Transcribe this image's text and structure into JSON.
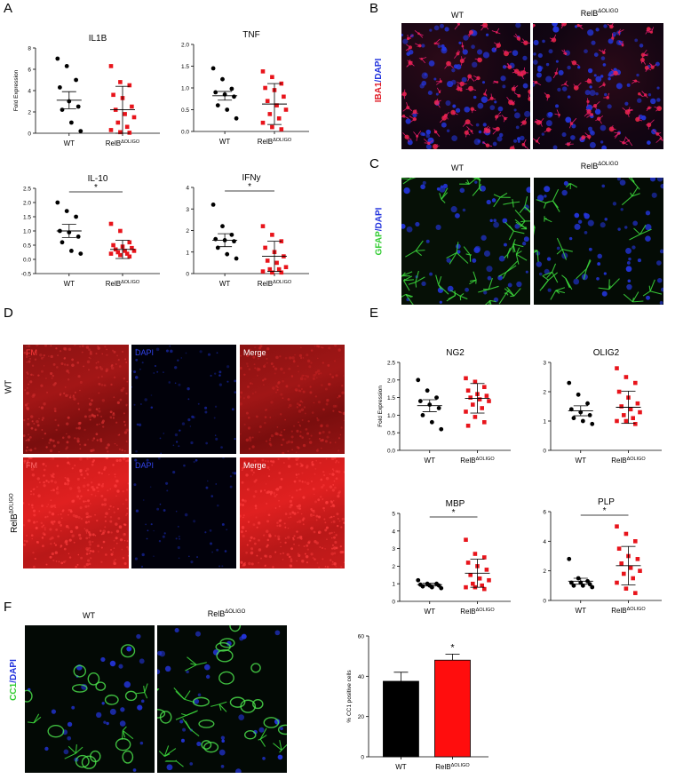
{
  "panels": {
    "A": "A",
    "B": "B",
    "C": "C",
    "D": "D",
    "E": "E",
    "F": "F"
  },
  "colors": {
    "wt": "#000000",
    "relb": "#e8141b",
    "red_stain": "#e0202a",
    "green_stain": "#33cc33",
    "blue_stain": "#2233dd"
  },
  "micro": {
    "wt": "WT",
    "relb_base": "RelB",
    "relb_sup": "ΔOLIGO",
    "B_side_a": "IBA1",
    "B_side_b": "/DAPI",
    "C_side_a": "GFAP",
    "C_side_b": "/DAPI",
    "F_side_a": "CC1",
    "F_side_b": "/DAPI",
    "D_fm": "FM",
    "D_dapi": "DAPI",
    "D_merge": "Merge",
    "D_row_wt": "WT"
  },
  "chart_data": [
    {
      "id": "IL1B",
      "type": "scatter",
      "title": "IL1B",
      "ylabel": "Fold Expression",
      "ylim": [
        0,
        8
      ],
      "yticks": [
        "0",
        "2",
        "4",
        "6",
        "8"
      ],
      "categories": [
        "WT",
        "RelB"
      ],
      "wt": [
        7.0,
        6.3,
        5.0,
        4.3,
        3.0,
        2.5,
        2.2,
        1.0,
        0.2
      ],
      "relb": [
        6.3,
        4.8,
        4.5,
        3.6,
        3.3,
        2.5,
        2.2,
        1.8,
        1.5,
        1.0,
        0.6,
        0.3,
        0.1,
        0.05
      ],
      "wt_mean": 3.1,
      "wt_err": 0.8,
      "relb_mean": 2.2,
      "relb_err": 2.2,
      "sig": ""
    },
    {
      "id": "TNF",
      "type": "scatter",
      "title": "TNF",
      "ylabel": "",
      "ylim": [
        0,
        2.0
      ],
      "yticks": [
        "0.0",
        "0.5",
        "1.0",
        "1.5",
        "2.0"
      ],
      "categories": [
        "WT",
        "RelB"
      ],
      "wt": [
        1.45,
        1.2,
        0.98,
        0.9,
        0.85,
        0.8,
        0.6,
        0.5,
        0.3
      ],
      "relb": [
        1.38,
        1.25,
        1.1,
        1.0,
        0.95,
        0.8,
        0.7,
        0.6,
        0.5,
        0.4,
        0.3,
        0.2,
        0.1,
        0.05
      ],
      "wt_mean": 0.82,
      "wt_err": 0.1,
      "relb_mean": 0.63,
      "relb_err": 0.47,
      "sig": ""
    },
    {
      "id": "IL-10",
      "type": "scatter",
      "title": "IL-10",
      "ylabel": "",
      "ylim": [
        -0.5,
        2.5
      ],
      "yticks": [
        "-0.5",
        "0.0",
        "0.5",
        "1.0",
        "1.5",
        "2.0",
        "2.5"
      ],
      "categories": [
        "WT",
        "RelB"
      ],
      "wt": [
        2.0,
        1.7,
        1.5,
        1.0,
        0.95,
        0.8,
        0.6,
        0.3,
        0.2
      ],
      "relb": [
        1.25,
        1.0,
        0.6,
        0.5,
        0.45,
        0.4,
        0.35,
        0.3,
        0.3,
        0.25,
        0.2,
        0.2,
        0.15,
        0.1
      ],
      "wt_mean": 1.0,
      "wt_err": 0.23,
      "relb_mean": 0.35,
      "relb_err": 0.32,
      "sig": "*"
    },
    {
      "id": "IFNy",
      "type": "scatter",
      "title": "IFNy",
      "ylabel": "",
      "ylim": [
        0,
        4
      ],
      "yticks": [
        "0",
        "1",
        "2",
        "3",
        "4"
      ],
      "categories": [
        "WT",
        "RelB"
      ],
      "wt": [
        3.2,
        2.2,
        1.8,
        1.6,
        1.55,
        1.5,
        1.2,
        0.9,
        0.7
      ],
      "relb": [
        2.2,
        1.8,
        1.5,
        1.2,
        1.0,
        0.8,
        0.6,
        0.5,
        0.3,
        0.2,
        0.2,
        0.1,
        0.05,
        0.05
      ],
      "wt_mean": 1.55,
      "wt_err": 0.3,
      "relb_mean": 0.8,
      "relb_err": 0.7,
      "sig": "*"
    },
    {
      "id": "NG2",
      "type": "scatter",
      "title": "NG2",
      "ylabel": "Fold Expression",
      "ylim": [
        0,
        2.5
      ],
      "yticks": [
        "0.0",
        "0.5",
        "1.0",
        "1.5",
        "2.0",
        "2.5"
      ],
      "categories": [
        "WT",
        "RelB"
      ],
      "wt": [
        2.0,
        1.7,
        1.5,
        1.4,
        1.3,
        1.2,
        1.0,
        0.8,
        0.6
      ],
      "relb": [
        2.05,
        1.95,
        1.8,
        1.7,
        1.6,
        1.55,
        1.5,
        1.45,
        1.4,
        1.3,
        1.2,
        1.1,
        0.95,
        0.8,
        0.7
      ],
      "wt_mean": 1.27,
      "wt_err": 0.17,
      "relb_mean": 1.48,
      "relb_err": 0.42,
      "sig": ""
    },
    {
      "id": "OLIG2",
      "type": "scatter",
      "title": "OLIG2",
      "ylabel": "",
      "ylim": [
        0,
        3
      ],
      "yticks": [
        "0",
        "1",
        "2",
        "3"
      ],
      "categories": [
        "WT",
        "RelB"
      ],
      "wt": [
        2.3,
        1.9,
        1.6,
        1.4,
        1.3,
        1.2,
        1.1,
        1.0,
        0.9
      ],
      "relb": [
        2.8,
        2.5,
        2.3,
        2.0,
        1.8,
        1.6,
        1.5,
        1.4,
        1.3,
        1.2,
        1.1,
        1.0,
        1.0,
        0.9
      ],
      "wt_mean": 1.35,
      "wt_err": 0.17,
      "relb_mean": 1.47,
      "relb_err": 0.55,
      "sig": ""
    },
    {
      "id": "MBP",
      "type": "scatter",
      "title": "MBP",
      "ylabel": "",
      "ylim": [
        0,
        5
      ],
      "yticks": [
        "0",
        "1",
        "2",
        "3",
        "4",
        "5"
      ],
      "categories": [
        "WT",
        "RelB"
      ],
      "wt": [
        1.2,
        1.0,
        1.0,
        0.95,
        0.9,
        0.9,
        0.85,
        0.8,
        0.75
      ],
      "relb": [
        3.5,
        2.7,
        2.5,
        2.2,
        2.0,
        1.8,
        1.5,
        1.3,
        1.2,
        1.0,
        0.9,
        0.8,
        0.8,
        0.7
      ],
      "wt_mean": 0.95,
      "wt_err": 0.08,
      "relb_mean": 1.6,
      "relb_err": 0.8,
      "sig": "*"
    },
    {
      "id": "PLP",
      "type": "scatter",
      "title": "PLP",
      "ylabel": "",
      "ylim": [
        0,
        6
      ],
      "yticks": [
        "0",
        "2",
        "4",
        "6"
      ],
      "categories": [
        "WT",
        "RelB"
      ],
      "wt": [
        2.8,
        1.5,
        1.3,
        1.2,
        1.2,
        1.1,
        1.0,
        1.0,
        0.9
      ],
      "relb": [
        5.0,
        4.5,
        4.0,
        3.5,
        3.0,
        2.8,
        2.5,
        2.2,
        2.0,
        1.8,
        1.5,
        1.2,
        0.8,
        0.5
      ],
      "wt_mean": 1.3,
      "wt_err": 0.2,
      "relb_mean": 2.35,
      "relb_err": 1.3,
      "sig": "*"
    },
    {
      "id": "CC1",
      "type": "bar",
      "title": "",
      "ylabel": "% CC1 positive cells",
      "ylim": [
        0,
        60
      ],
      "yticks": [
        "0",
        "20",
        "40",
        "60"
      ],
      "categories": [
        "WT",
        "RelB"
      ],
      "values": [
        37.5,
        48
      ],
      "errors": [
        4.5,
        3
      ],
      "sig": "*"
    }
  ]
}
